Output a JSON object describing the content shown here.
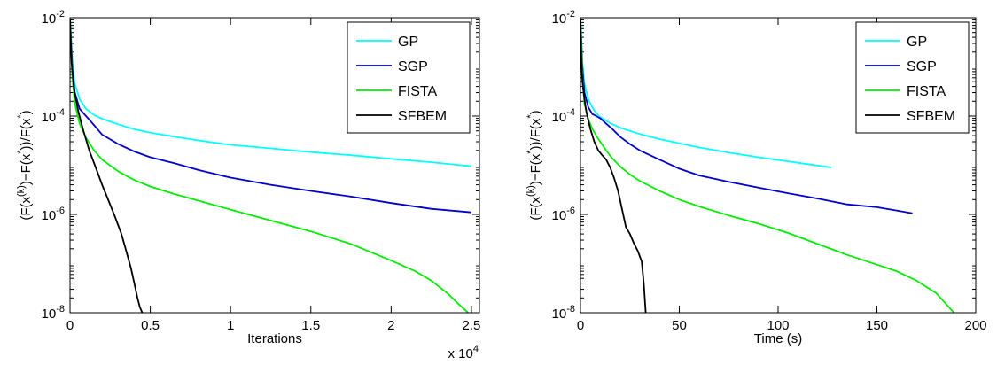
{
  "chart_data": [
    {
      "type": "line",
      "xlabel": "Iterations",
      "ylabel_parts": [
        "(F(x",
        "(k)",
        ")−F(x",
        "*",
        "))/F(x",
        "*",
        ")"
      ],
      "xscale": "linear",
      "yscale": "log",
      "xlim": [
        0,
        25500
      ],
      "ylim": [
        1e-08,
        0.01
      ],
      "x_multiplier_label": [
        "x 10",
        "4"
      ],
      "xticks": [
        0,
        5000,
        10000,
        15000,
        20000,
        25000
      ],
      "xtick_labels": [
        "0",
        "0.5",
        "1",
        "1.5",
        "2",
        "2.5"
      ],
      "yticks": [
        1e-08,
        1e-06,
        0.0001,
        0.01
      ],
      "ytick_labels": [
        [
          "10",
          "-8"
        ],
        [
          "10",
          "-6"
        ],
        [
          "10",
          "-4"
        ],
        [
          "10",
          "-2"
        ]
      ],
      "legend_position": "top-right",
      "series": [
        {
          "name": "GP",
          "color": "#00ffff",
          "x": [
            0,
            150,
            300,
            600,
            1000,
            1500,
            2000,
            3000,
            4000,
            5000,
            6500,
            8000,
            10000,
            12500,
            15000,
            17500,
            20000,
            22500,
            25000
          ],
          "y": [
            0.0095,
            0.0012,
            0.00045,
            0.00022,
            0.00014,
            0.000105,
            8.8e-05,
            6.8e-05,
            5.4e-05,
            4.6e-05,
            3.8e-05,
            3.2e-05,
            2.6e-05,
            2.2e-05,
            1.85e-05,
            1.6e-05,
            1.35e-05,
            1.15e-05,
            9.5e-06
          ]
        },
        {
          "name": "SGP",
          "color": "#0000cc",
          "x": [
            0,
            150,
            300,
            600,
            1000,
            1500,
            2000,
            3000,
            4000,
            5000,
            6500,
            8000,
            10000,
            12500,
            15000,
            17500,
            20000,
            22500,
            25000
          ],
          "y": [
            0.0095,
            0.0009,
            0.0003,
            0.00014,
            0.0001,
            6.5e-05,
            4.2e-05,
            2.7e-05,
            1.9e-05,
            1.45e-05,
            1.1e-05,
            8e-06,
            5.6e-06,
            4e-06,
            3e-06,
            2.3e-06,
            1.7e-06,
            1.3e-06,
            1.1e-06
          ]
        },
        {
          "name": "FISTA",
          "color": "#00ee00",
          "x": [
            0,
            150,
            300,
            600,
            1000,
            1500,
            2000,
            3000,
            4000,
            5000,
            6500,
            8000,
            10000,
            12500,
            15000,
            17500,
            20000,
            21500,
            22500,
            23500,
            24200,
            24800
          ],
          "y": [
            0.0095,
            0.0006,
            0.00018,
            7e-05,
            3.6e-05,
            2e-05,
            1.3e-05,
            7.5e-06,
            5e-06,
            3.7e-06,
            2.6e-06,
            1.9e-06,
            1.25e-06,
            7.5e-07,
            4.5e-07,
            2.5e-07,
            1.15e-07,
            7e-08,
            4.5e-08,
            2.5e-08,
            1.5e-08,
            1e-08
          ]
        },
        {
          "name": "SFBEM",
          "color": "#000000",
          "x": [
            0,
            100,
            250,
            500,
            800,
            1200,
            1600,
            2000,
            2400,
            2800,
            3200,
            3500,
            3800,
            4000,
            4200,
            4350,
            4500
          ],
          "y": [
            0.0095,
            0.0012,
            0.00035,
            0.00013,
            5.5e-05,
            2e-05,
            9e-06,
            4e-06,
            1.9e-06,
            9e-07,
            4e-07,
            1.8e-07,
            8e-08,
            4e-08,
            2e-08,
            1.3e-08,
            1e-08
          ]
        }
      ]
    },
    {
      "type": "line",
      "xlabel": "Time (s)",
      "ylabel_parts": [
        "(F(x",
        "(k)",
        ")−F(x",
        "*",
        "))/F(x",
        "*",
        ")"
      ],
      "xscale": "linear",
      "yscale": "log",
      "xlim": [
        0,
        200
      ],
      "ylim": [
        1e-08,
        0.01
      ],
      "xticks": [
        0,
        50,
        100,
        150,
        200
      ],
      "xtick_labels": [
        "0",
        "50",
        "100",
        "150",
        "200"
      ],
      "yticks": [
        1e-08,
        1e-06,
        0.0001,
        0.01
      ],
      "ytick_labels": [
        [
          "10",
          "-8"
        ],
        [
          "10",
          "-6"
        ],
        [
          "10",
          "-4"
        ],
        [
          "10",
          "-2"
        ]
      ],
      "legend_position": "top-right",
      "series": [
        {
          "name": "GP",
          "color": "#00ffff",
          "x": [
            0,
            1,
            2,
            4,
            6,
            8,
            10,
            15,
            20,
            30,
            40,
            50,
            60,
            75,
            90,
            105,
            115,
            127
          ],
          "y": [
            0.0095,
            0.0012,
            0.00045,
            0.00022,
            0.00015,
            0.000115,
            9.5e-05,
            7.2e-05,
            5.8e-05,
            4.3e-05,
            3.4e-05,
            2.8e-05,
            2.3e-05,
            1.8e-05,
            1.45e-05,
            1.2e-05,
            1.05e-05,
            9e-06
          ]
        },
        {
          "name": "SGP",
          "color": "#0000cc",
          "x": [
            0,
            1,
            2,
            4,
            6,
            8,
            10,
            13,
            16,
            20,
            25,
            30,
            40,
            50,
            60,
            75,
            90,
            105,
            120,
            135,
            150,
            160,
            168
          ],
          "y": [
            0.0095,
            0.0009,
            0.0003,
            0.00015,
            0.00011,
            0.0001,
            9e-05,
            7e-05,
            5.5e-05,
            3.8e-05,
            2.7e-05,
            2e-05,
            1.3e-05,
            8.5e-06,
            6.2e-06,
            4.6e-06,
            3.5e-06,
            2.7e-06,
            2.1e-06,
            1.6e-06,
            1.4e-06,
            1.2e-06,
            1.05e-06
          ]
        },
        {
          "name": "FISTA",
          "color": "#00ee00",
          "x": [
            0,
            1,
            2,
            4,
            6,
            8,
            10,
            13,
            16,
            20,
            25,
            30,
            40,
            50,
            60,
            75,
            90,
            105,
            120,
            135,
            150,
            160,
            170,
            180,
            185,
            189
          ],
          "y": [
            0.0095,
            0.0006,
            0.00018,
            8.5e-05,
            5.5e-05,
            4e-05,
            3e-05,
            2e-05,
            1.4e-05,
            9.5e-06,
            6.5e-06,
            4.8e-06,
            3e-06,
            2e-06,
            1.45e-06,
            9.5e-07,
            6.5e-07,
            4.2e-07,
            2.5e-07,
            1.5e-07,
            9.5e-08,
            7e-08,
            4.5e-08,
            2.5e-08,
            1.5e-08,
            1e-08
          ]
        },
        {
          "name": "SFBEM",
          "color": "#000000",
          "x": [
            0,
            0.5,
            1,
            2,
            3,
            5,
            7,
            9,
            11,
            13,
            15,
            17,
            19,
            21,
            23,
            25,
            27,
            29,
            31,
            32,
            33
          ],
          "y": [
            0.0095,
            0.0013,
            0.0005,
            0.00022,
            0.00012,
            5.5e-05,
            3e-05,
            2e-05,
            1.6e-05,
            1.3e-05,
            9e-06,
            5.5e-06,
            3e-06,
            1.3e-06,
            5.5e-07,
            4e-07,
            2.6e-07,
            1.8e-07,
            1.1e-07,
            4e-08,
            1e-08
          ]
        }
      ]
    }
  ]
}
